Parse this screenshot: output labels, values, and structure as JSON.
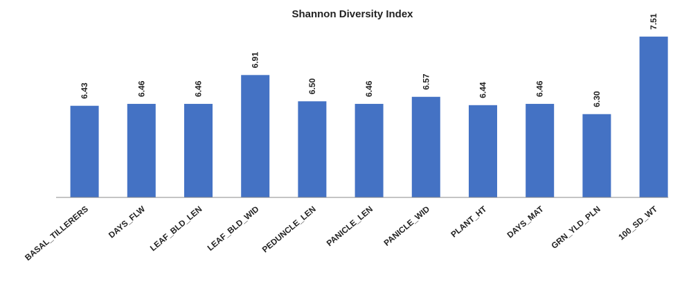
{
  "chart_data": {
    "type": "bar",
    "title": "Shannon Diversity Index",
    "categories": [
      "BASAL_TILLERERS",
      "DAYS_FLW",
      "LEAF_BLD_LEN",
      "LEAF_BLD_WID",
      "PEDUNCLE_LEN",
      "PANICLE_LEN",
      "PANICLE_WID",
      "PLANT_HT",
      "DAYS_MAT",
      "GRN_YLD_PLN",
      "100_SD_WT"
    ],
    "values": [
      6.43,
      6.46,
      6.46,
      6.91,
      6.5,
      6.46,
      6.57,
      6.44,
      6.46,
      6.3,
      7.51
    ],
    "value_labels": [
      "6.43",
      "6.46",
      "6.46",
      "6.91",
      "6.50",
      "6.46",
      "6.57",
      "6.44",
      "6.46",
      "6.30",
      "7.51"
    ],
    "color": "#4472c4",
    "ylim": [
      5,
      7.8
    ]
  }
}
